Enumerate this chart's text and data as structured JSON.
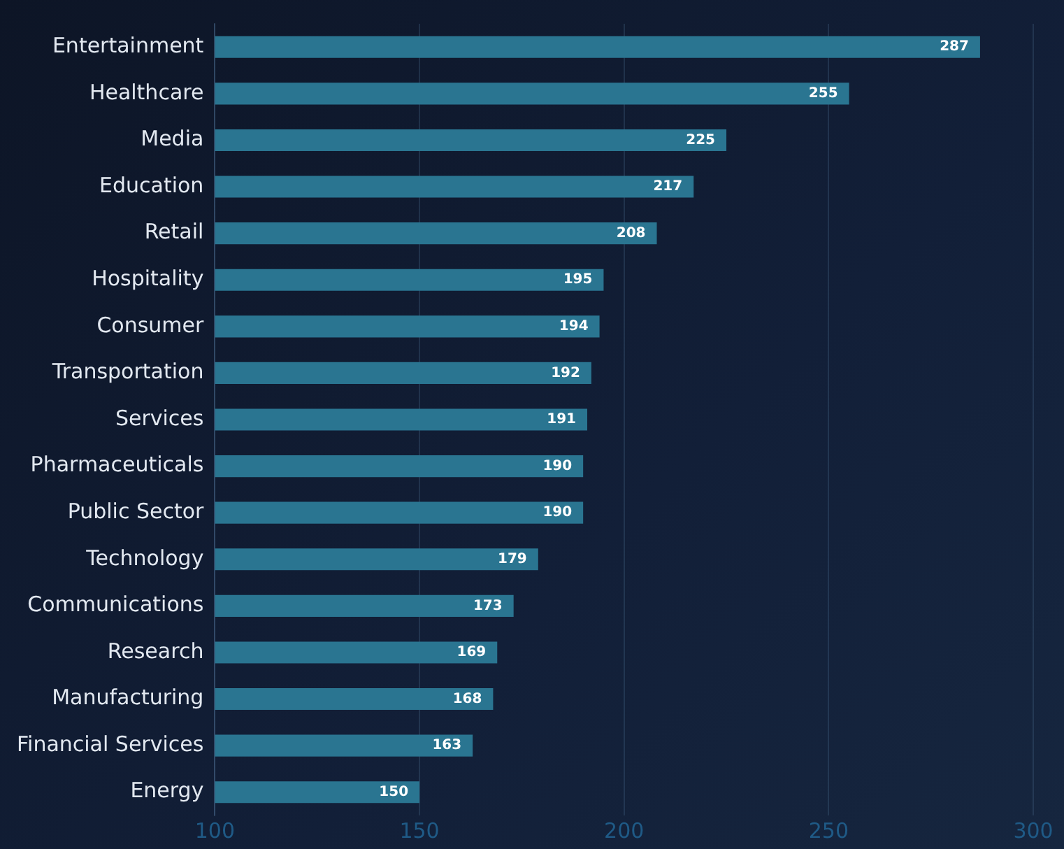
{
  "chart_data": {
    "type": "bar",
    "orientation": "horizontal",
    "categories": [
      "Entertainment",
      "Healthcare",
      "Media",
      "Education",
      "Retail",
      "Hospitality",
      "Consumer",
      "Transportation",
      "Services",
      "Pharmaceuticals",
      "Public Sector",
      "Technology",
      "Communications",
      "Research",
      "Manufacturing",
      "Financial Services",
      "Energy"
    ],
    "values": [
      287,
      255,
      225,
      217,
      208,
      195,
      194,
      192,
      191,
      190,
      190,
      179,
      173,
      169,
      168,
      163,
      150
    ],
    "color": "#2a7591",
    "xlim": [
      100,
      300
    ],
    "xticks": [
      100,
      150,
      200,
      250,
      300
    ],
    "grid": "x",
    "data_labels": true,
    "legend": false
  }
}
